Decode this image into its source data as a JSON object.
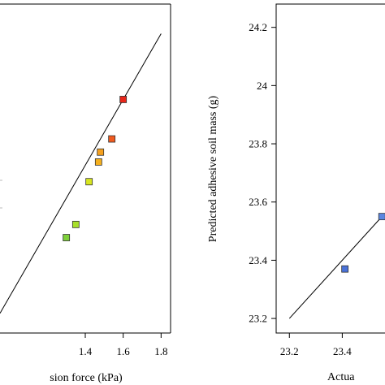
{
  "chart_data": [
    {
      "type": "scatter",
      "xlabel": "sion force (kPa)",
      "ylabel": "",
      "xlim": [
        0.95,
        1.85
      ],
      "ylim": [
        0.9,
        1.9
      ],
      "x_ticks": [
        "1.4",
        "1.6",
        "1.8"
      ],
      "x_tick_values": [
        1.4,
        1.6,
        1.8
      ],
      "fit_line": {
        "x": [
          0.95,
          1.8
        ],
        "y": [
          0.96,
          1.81
        ]
      },
      "points": [
        {
          "x": 1.6,
          "y": 1.61,
          "color": "#e8261a"
        },
        {
          "x": 1.54,
          "y": 1.49,
          "color": "#f05a1e"
        },
        {
          "x": 1.48,
          "y": 1.45,
          "color": "#f5a01e"
        },
        {
          "x": 1.47,
          "y": 1.42,
          "color": "#f5b01e"
        },
        {
          "x": 1.42,
          "y": 1.36,
          "color": "#d8e620"
        },
        {
          "x": 1.35,
          "y": 1.23,
          "color": "#a8e02a"
        },
        {
          "x": 1.3,
          "y": 1.19,
          "color": "#7ed03a"
        }
      ]
    },
    {
      "type": "scatter",
      "xlabel": "Actua",
      "ylabel": "Predicted adhesive soil mass (g)",
      "xlim": [
        23.15,
        23.58
      ],
      "ylim": [
        23.15,
        24.28
      ],
      "x_ticks": [
        "23.2",
        "23.4"
      ],
      "x_tick_values": [
        23.2,
        23.4
      ],
      "y_ticks": [
        "23.2",
        "23.4",
        "23.6",
        "23.8",
        "24",
        "24.2"
      ],
      "y_tick_values": [
        23.2,
        23.4,
        23.6,
        23.8,
        24.0,
        24.2
      ],
      "fit_line": {
        "x": [
          23.2,
          23.55
        ],
        "y": [
          23.2,
          23.55
        ]
      },
      "points": [
        {
          "x": 23.41,
          "y": 23.37,
          "color": "#4a72d8"
        },
        {
          "x": 23.55,
          "y": 23.55,
          "color": "#5b86e0"
        }
      ]
    }
  ]
}
